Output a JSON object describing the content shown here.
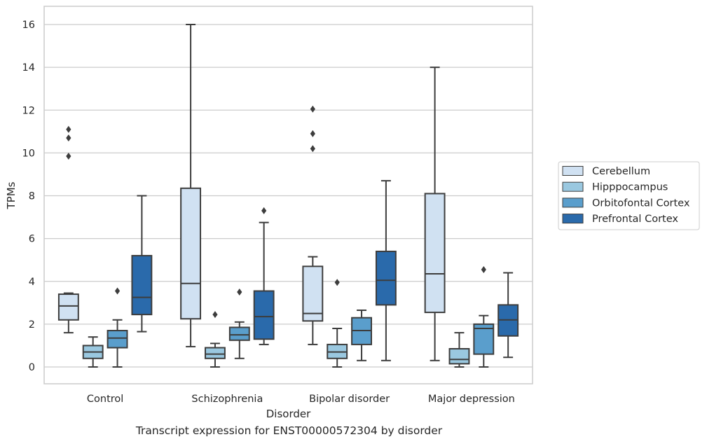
{
  "caption": "Transcript expression for ENST00000572304 by disorder",
  "chart_data": {
    "type": "box",
    "title": "",
    "xlabel": "Disorder",
    "ylabel": "TPMs",
    "ylim": [
      -0.75,
      16.85
    ],
    "yticks": [
      0,
      2,
      4,
      6,
      8,
      10,
      12,
      14,
      16
    ],
    "grid": "horizontal",
    "legend_position": "right",
    "categories": [
      "Control",
      "Schizophrenia",
      "Bipolar disorder",
      "Major depression"
    ],
    "series": [
      {
        "name": "Cerebellum",
        "color": "#d0e1f2",
        "boxes": [
          {
            "whislo": 1.6,
            "q1": 2.2,
            "med": 2.85,
            "q3": 3.4,
            "whishi": 3.45,
            "fliers": [
              9.85,
              10.7,
              11.1
            ]
          },
          {
            "whislo": 0.95,
            "q1": 2.25,
            "med": 3.9,
            "q3": 8.35,
            "whishi": 16.0,
            "fliers": []
          },
          {
            "whislo": 1.05,
            "q1": 2.15,
            "med": 2.5,
            "q3": 4.7,
            "whishi": 5.15,
            "fliers": [
              10.2,
              10.9,
              12.05
            ]
          },
          {
            "whislo": 0.3,
            "q1": 2.55,
            "med": 4.35,
            "q3": 8.1,
            "whishi": 14.0,
            "fliers": []
          }
        ]
      },
      {
        "name": "Hipppocampus",
        "color": "#9ac8e0",
        "boxes": [
          {
            "whislo": 0.0,
            "q1": 0.4,
            "med": 0.7,
            "q3": 1.0,
            "whishi": 1.4,
            "fliers": []
          },
          {
            "whislo": 0.0,
            "q1": 0.4,
            "med": 0.6,
            "q3": 0.9,
            "whishi": 1.1,
            "fliers": [
              2.45
            ]
          },
          {
            "whislo": 0.0,
            "q1": 0.4,
            "med": 0.7,
            "q3": 1.05,
            "whishi": 1.8,
            "fliers": [
              3.95
            ]
          },
          {
            "whislo": 0.0,
            "q1": 0.15,
            "med": 0.35,
            "q3": 0.85,
            "whishi": 1.6,
            "fliers": []
          }
        ]
      },
      {
        "name": "Orbitofontal Cortex",
        "color": "#5a9ecc",
        "boxes": [
          {
            "whislo": 0.0,
            "q1": 0.9,
            "med": 1.35,
            "q3": 1.7,
            "whishi": 2.2,
            "fliers": [
              3.55
            ]
          },
          {
            "whislo": 0.4,
            "q1": 1.25,
            "med": 1.5,
            "q3": 1.85,
            "whishi": 2.1,
            "fliers": [
              3.5
            ]
          },
          {
            "whislo": 0.3,
            "q1": 1.05,
            "med": 1.7,
            "q3": 2.3,
            "whishi": 2.65,
            "fliers": []
          },
          {
            "whislo": 0.0,
            "q1": 0.6,
            "med": 1.8,
            "q3": 2.0,
            "whishi": 2.4,
            "fliers": [
              4.55
            ]
          }
        ]
      },
      {
        "name": "Prefrontal Cortex",
        "color": "#2a6aab",
        "boxes": [
          {
            "whislo": 1.65,
            "q1": 2.45,
            "med": 3.25,
            "q3": 5.2,
            "whishi": 8.0,
            "fliers": []
          },
          {
            "whislo": 1.05,
            "q1": 1.3,
            "med": 2.35,
            "q3": 3.55,
            "whishi": 6.75,
            "fliers": [
              7.3
            ]
          },
          {
            "whislo": 0.3,
            "q1": 2.9,
            "med": 4.05,
            "q3": 5.4,
            "whishi": 8.7,
            "fliers": []
          },
          {
            "whislo": 0.45,
            "q1": 1.45,
            "med": 2.2,
            "q3": 2.9,
            "whishi": 4.4,
            "fliers": []
          }
        ]
      }
    ]
  }
}
